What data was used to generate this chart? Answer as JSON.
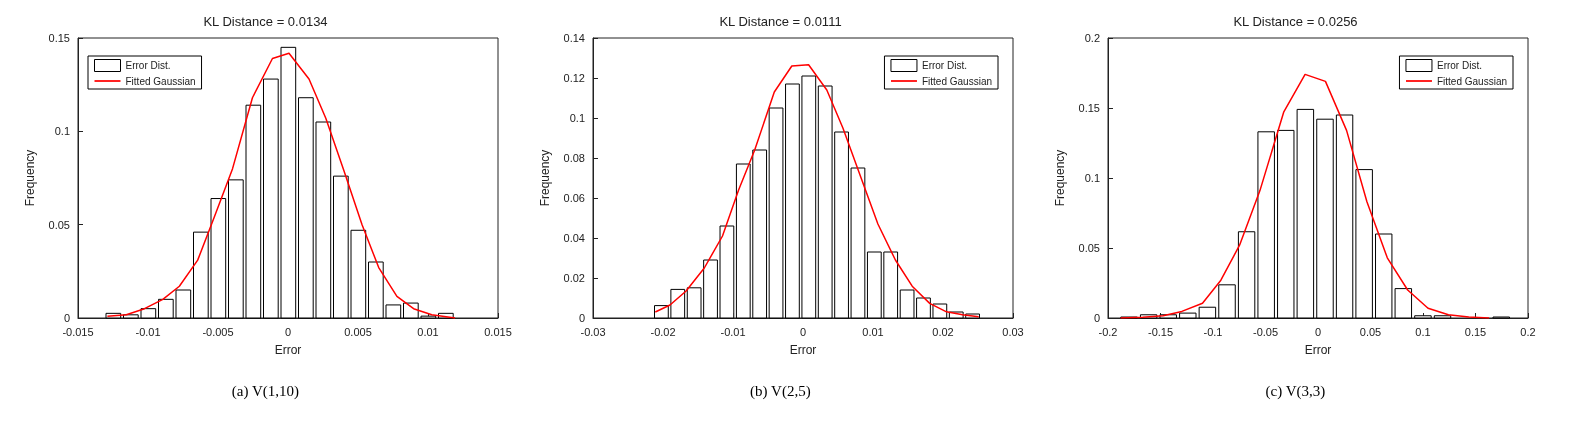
{
  "chart_data": [
    {
      "type": "histogram",
      "title": "KL Distance = 0.0134",
      "xlabel": "Error",
      "ylabel": "Frequency",
      "xlim": [
        -0.015,
        0.015
      ],
      "xticks": [
        -0.015,
        -0.01,
        -0.005,
        0,
        0.005,
        0.01,
        0.015
      ],
      "ylim": [
        0,
        0.15
      ],
      "yticks": [
        0,
        0.05,
        0.1,
        0.15
      ],
      "legend": "top left",
      "annotations": [
        "(a) V(1,10)"
      ],
      "bins": [
        -0.0131,
        -0.01185,
        -0.0106,
        -0.00935,
        -0.0081,
        -0.00685,
        -0.0056,
        -0.00435,
        -0.0031,
        -0.00185,
        -0.0006,
        0.00065,
        0.0019,
        0.00315,
        0.0044,
        0.00565,
        0.0069,
        0.00815,
        0.0094,
        0.01065,
        0.0119
      ],
      "series": [
        {
          "name": "Error Dist.",
          "color": "#ffffff",
          "values": [
            0.0025,
            0.0017,
            0.005,
            0.01,
            0.015,
            0.046,
            0.064,
            0.074,
            0.114,
            0.128,
            0.145,
            0.118,
            0.105,
            0.076,
            0.047,
            0.03,
            0.007,
            0.008,
            0.001,
            0.0025
          ]
        },
        {
          "type": "line",
          "name": "Fitted Gaussian",
          "color": "#ff0000",
          "x": [
            -0.0129,
            -0.01155,
            -0.01025,
            -0.00894,
            -0.00776,
            -0.00645,
            -0.00527,
            -0.00396,
            -0.00254,
            -0.00111,
            7e-05,
            0.0015,
            0.0027,
            0.00399,
            0.00529,
            0.00648,
            0.00778,
            0.00897,
            0.01027,
            0.01193
          ],
          "values": [
            0.001,
            0.0017,
            0.005,
            0.01,
            0.017,
            0.031,
            0.054,
            0.08,
            0.118,
            0.139,
            0.1418,
            0.128,
            0.107,
            0.079,
            0.05,
            0.027,
            0.0116,
            0.005,
            0.0017,
            0
          ]
        }
      ]
    },
    {
      "type": "histogram",
      "title": "KL Distance = 0.0111",
      "xlabel": "Error",
      "ylabel": "Frequency",
      "xlim": [
        -0.03,
        0.03
      ],
      "xticks": [
        -0.03,
        -0.02,
        -0.01,
        0,
        0.01,
        0.02,
        0.03
      ],
      "ylim": [
        0,
        0.14
      ],
      "yticks": [
        0,
        0.02,
        0.04,
        0.06,
        0.08,
        0.1,
        0.12,
        0.14
      ],
      "legend": "top right",
      "annotations": [
        "(b) V(2,5)"
      ],
      "bins": [
        -0.0214,
        -0.01906,
        -0.01672,
        -0.01438,
        -0.01204,
        -0.0097,
        -0.00736,
        -0.00502,
        -0.00268,
        -0.00034,
        0.002,
        0.00434,
        0.00668,
        0.00902,
        0.01136,
        0.0137,
        0.01604,
        0.01838,
        0.02072,
        0.02306,
        0.0254
      ],
      "series": [
        {
          "name": "Error Dist.",
          "color": "#ffffff",
          "values": [
            0.0062,
            0.0143,
            0.0151,
            0.029,
            0.046,
            0.077,
            0.084,
            0.105,
            0.117,
            0.121,
            0.116,
            0.093,
            0.075,
            0.033,
            0.033,
            0.014,
            0.01,
            0.007,
            0.003,
            0.002
          ]
        },
        {
          "type": "line",
          "name": "Fitted Gaussian",
          "color": "#ff0000",
          "x": [
            -0.0211,
            -0.019,
            -0.0167,
            -0.0141,
            -0.0115,
            -0.0092,
            -0.0069,
            -0.0041,
            -0.0016,
            0.0008,
            0.0034,
            0.0057,
            0.0083,
            0.0107,
            0.0132,
            0.0156,
            0.0181,
            0.0205,
            0.0228,
            0.0251
          ],
          "values": [
            0.003,
            0.0065,
            0.0135,
            0.025,
            0.041,
            0.064,
            0.084,
            0.113,
            0.126,
            0.1266,
            0.114,
            0.095,
            0.07,
            0.047,
            0.029,
            0.0159,
            0.0073,
            0.0031,
            0.0016,
            0.0006
          ]
        }
      ]
    },
    {
      "type": "histogram",
      "title": "KL Distance = 0.0256",
      "xlabel": "Error",
      "ylabel": "Frequency",
      "xlim": [
        -0.2,
        0.2
      ],
      "xticks": [
        -0.2,
        -0.15,
        -0.1,
        -0.05,
        0,
        0.05,
        0.1,
        0.15,
        0.2
      ],
      "ylim": [
        0,
        0.2
      ],
      "yticks": [
        0,
        0.05,
        0.1,
        0.15,
        0.2
      ],
      "legend": "top right",
      "annotations": [
        "(c) V(3,3)"
      ],
      "bins": [
        -0.1893,
        -0.1706,
        -0.152,
        -0.1333,
        -0.1147,
        -0.096,
        -0.0773,
        -0.0587,
        -0.04,
        -0.0214,
        -0.0027,
        0.016,
        0.0346,
        0.0533,
        0.0719,
        0.0906,
        0.1093,
        0.1279,
        0.1466,
        0.1652,
        0.1839
      ],
      "series": [
        {
          "name": "Error Dist.",
          "color": "#ffffff",
          "values": [
            0.0007,
            0.0023,
            0.0023,
            0.0035,
            0.0077,
            0.0237,
            0.0616,
            0.133,
            0.134,
            0.149,
            0.142,
            0.145,
            0.106,
            0.06,
            0.021,
            0.0016,
            0.0016,
            null,
            null,
            0.0007
          ]
        },
        {
          "type": "line",
          "name": "Fitted Gaussian",
          "color": "#ff0000",
          "x": [
            -0.188,
            -0.167,
            -0.1475,
            -0.1297,
            -0.11,
            -0.0925,
            -0.0747,
            -0.0553,
            -0.0327,
            -0.0123,
            0.0071,
            0.0272,
            0.0466,
            0.066,
            0.0854,
            0.1048,
            0.1242,
            0.1436,
            0.163
          ],
          "values": [
            0,
            0.0005,
            0.0016,
            0.0047,
            0.0105,
            0.027,
            0.052,
            0.091,
            0.147,
            0.174,
            0.169,
            0.134,
            0.083,
            0.043,
            0.02,
            0.007,
            0.0023,
            0.0007,
            0
          ]
        }
      ]
    }
  ]
}
